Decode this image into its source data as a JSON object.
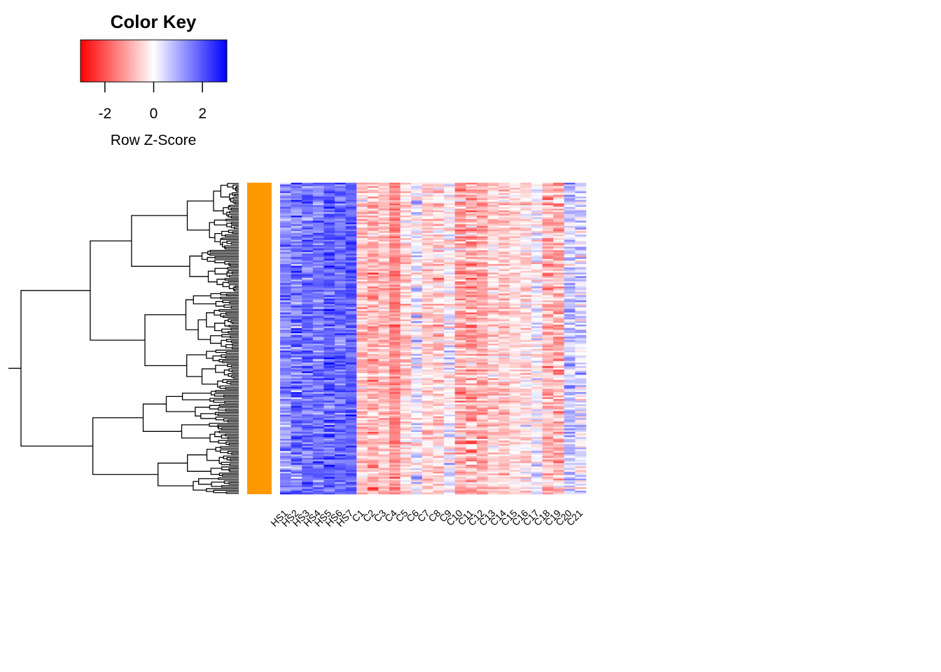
{
  "chart_data": {
    "type": "heatmap",
    "title": "",
    "color_key": {
      "title": "Color Key",
      "label": "Row Z-Score",
      "range": [
        -3,
        3
      ],
      "ticks": [
        "-2",
        "0",
        "2"
      ],
      "tick_values": [
        -2,
        0,
        2
      ],
      "low_color": "#ff0000",
      "mid_color": "#ffffff",
      "high_color": "#0000ff"
    },
    "side_color": "#ff9900",
    "dendrogram": "rows",
    "columns": [
      "HS1",
      "HS2",
      "HS3",
      "HS4",
      "HS5",
      "HS6",
      "HS7",
      "C1",
      "C2",
      "C3",
      "C4",
      "C5",
      "C6",
      "C7",
      "C8",
      "C9",
      "C10",
      "C11",
      "C12",
      "C13",
      "C14",
      "C15",
      "C16",
      "C17",
      "C18",
      "C19",
      "C20",
      "C21"
    ],
    "column_mean_zscore": [
      1.4,
      1.5,
      1.7,
      1.6,
      1.9,
      1.7,
      1.9,
      -0.7,
      -1.0,
      -0.7,
      -1.4,
      -0.5,
      0.2,
      -0.5,
      -0.6,
      0.1,
      -1.0,
      -1.0,
      -1.0,
      -0.5,
      -0.7,
      -0.4,
      -0.3,
      0.1,
      -0.9,
      -0.9,
      0.6,
      0.3
    ]
  }
}
